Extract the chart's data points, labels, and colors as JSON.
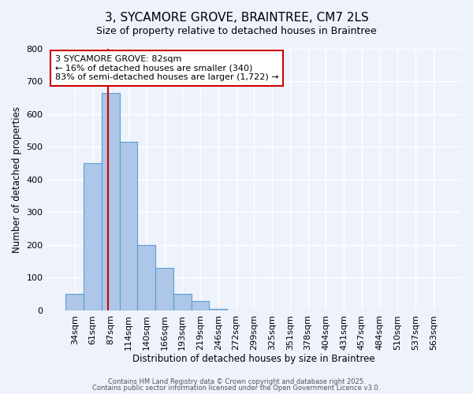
{
  "title": "3, SYCAMORE GROVE, BRAINTREE, CM7 2LS",
  "subtitle": "Size of property relative to detached houses in Braintree",
  "xlabel": "Distribution of detached houses by size in Braintree",
  "ylabel": "Number of detached properties",
  "bin_labels": [
    "34sqm",
    "61sqm",
    "87sqm",
    "114sqm",
    "140sqm",
    "166sqm",
    "193sqm",
    "219sqm",
    "246sqm",
    "272sqm",
    "299sqm",
    "325sqm",
    "351sqm",
    "378sqm",
    "404sqm",
    "431sqm",
    "457sqm",
    "484sqm",
    "510sqm",
    "537sqm",
    "563sqm"
  ],
  "bar_values": [
    50,
    450,
    665,
    515,
    200,
    130,
    50,
    28,
    5,
    0,
    0,
    0,
    0,
    0,
    0,
    0,
    0,
    0,
    0,
    0,
    0
  ],
  "bar_color": "#aec6e8",
  "bar_edge_color": "#5a9fd4",
  "vline_pos": 1.85,
  "annotation_title": "3 SYCAMORE GROVE: 82sqm",
  "annotation_line1": "← 16% of detached houses are smaller (340)",
  "annotation_line2": "83% of semi-detached houses are larger (1,722) →",
  "annotation_box_color": "#ffffff",
  "annotation_box_edge_color": "#cc0000",
  "vline_color": "#cc0000",
  "ylim": [
    0,
    800
  ],
  "yticks": [
    0,
    100,
    200,
    300,
    400,
    500,
    600,
    700,
    800
  ],
  "bg_color": "#eef2fb",
  "footer1": "Contains HM Land Registry data © Crown copyright and database right 2025.",
  "footer2": "Contains public sector information licensed under the Open Government Licence v3.0."
}
